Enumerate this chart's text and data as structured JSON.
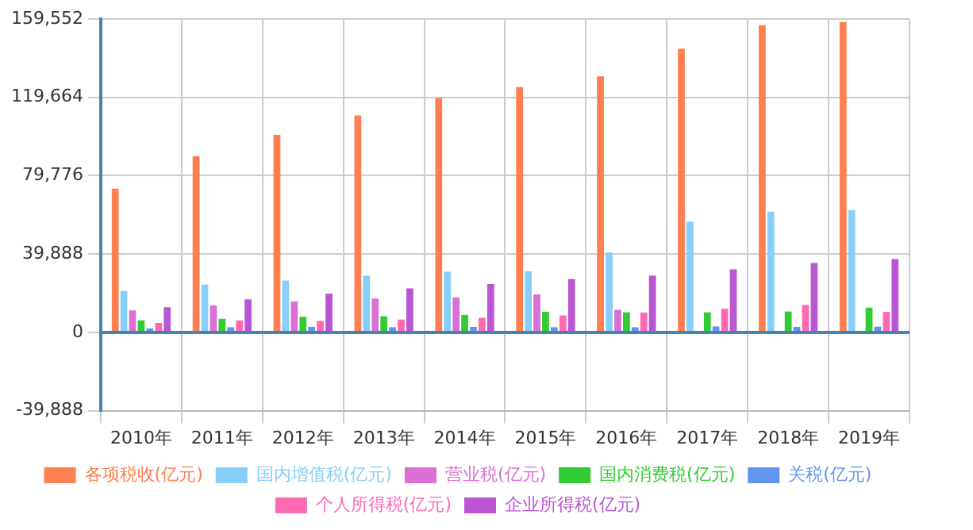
{
  "chart_data": {
    "type": "bar",
    "categories": [
      "2010年",
      "2011年",
      "2012年",
      "2013年",
      "2014年",
      "2015年",
      "2016年",
      "2017年",
      "2018年",
      "2019年"
    ],
    "series": [
      {
        "name": "各项税收(亿元)",
        "color": "#ff7f50",
        "values": [
          73200,
          89700,
          100600,
          110500,
          119200,
          124900,
          130400,
          144400,
          156400,
          158000
        ]
      },
      {
        "name": "国内增值税(亿元)",
        "color": "#87cefa",
        "values": [
          21100,
          24300,
          26400,
          28800,
          30900,
          31100,
          40700,
          56400,
          61500,
          62300
        ]
      },
      {
        "name": "营业税(亿元)",
        "color": "#da70d6",
        "values": [
          11200,
          13700,
          15700,
          17200,
          17800,
          19300,
          11500,
          null,
          null,
          null
        ]
      },
      {
        "name": "国内消费税(亿元)",
        "color": "#32cd32",
        "values": [
          6100,
          6900,
          7900,
          8200,
          8900,
          10500,
          10200,
          10200,
          10600,
          12600
        ]
      },
      {
        "name": "关税(亿元)",
        "color": "#6495ed",
        "values": [
          2000,
          2600,
          2800,
          2600,
          2800,
          2600,
          2600,
          3000,
          2800,
          2900
        ]
      },
      {
        "name": "个人所得税(亿元)",
        "color": "#ff69b4",
        "values": [
          4800,
          6100,
          5800,
          6500,
          7400,
          8600,
          10100,
          12000,
          13900,
          10400
        ]
      },
      {
        "name": "企业所得税(亿元)",
        "color": "#ba55d3",
        "values": [
          12800,
          16800,
          19700,
          22400,
          24600,
          27100,
          28900,
          32100,
          35300,
          37300
        ]
      }
    ],
    "ylim": [
      -39888,
      159552
    ],
    "yticks": [
      {
        "value": -39888,
        "label": "-39,888"
      },
      0,
      {
        "value": 39888,
        "label": "39,888"
      },
      {
        "value": 79776,
        "label": "79,776"
      },
      {
        "value": 119664,
        "label": "119,664"
      },
      {
        "value": 159552,
        "label": "159,552"
      }
    ],
    "ref_lines": [
      {
        "axis": "y",
        "value": 0,
        "color": "#4682b4"
      }
    ],
    "grid": true,
    "legend": "bottom"
  }
}
